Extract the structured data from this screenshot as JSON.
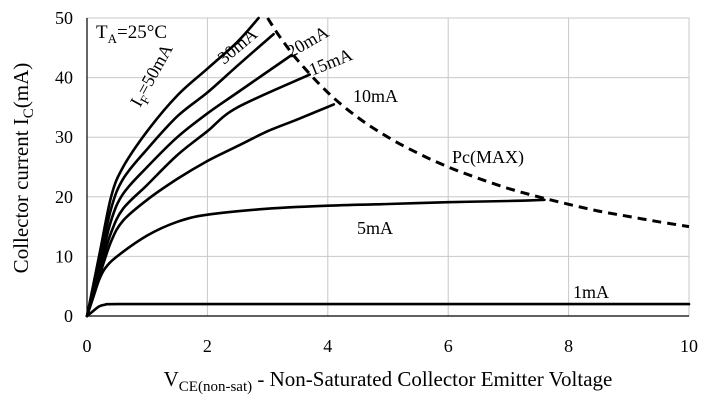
{
  "chart_data": {
    "type": "line",
    "annotation": {
      "prefix": "T",
      "sub": "A",
      "suffix": "=25°C"
    },
    "xlabel": {
      "main": "V",
      "sub": "CE(non-sat)",
      "rest": " - Non-Saturated Collector Emitter Voltage"
    },
    "ylabel": {
      "main": "Collector current I",
      "sub": "C",
      "rest": "(mA)"
    },
    "xlim": [
      0,
      10
    ],
    "ylim": [
      0,
      50
    ],
    "x_ticks": [
      0,
      2,
      4,
      6,
      8,
      10
    ],
    "y_ticks": [
      0,
      10,
      20,
      30,
      40,
      50
    ],
    "grid": true,
    "series": [
      {
        "label": "I",
        "label_sub": "F",
        "label_rest": "=50mA",
        "points": [
          [
            0,
            0
          ],
          [
            0.2,
            10
          ],
          [
            0.4,
            20
          ],
          [
            0.6,
            25
          ],
          [
            1,
            31
          ],
          [
            1.5,
            37
          ],
          [
            2,
            41.5
          ],
          [
            2.5,
            46
          ],
          [
            2.85,
            50
          ]
        ]
      },
      {
        "label": "30mA",
        "points": [
          [
            0,
            0
          ],
          [
            0.2,
            9
          ],
          [
            0.4,
            18
          ],
          [
            0.6,
            23
          ],
          [
            1,
            28
          ],
          [
            1.5,
            33.5
          ],
          [
            2,
            37.5
          ],
          [
            2.5,
            42
          ],
          [
            3.1,
            47.3
          ]
        ]
      },
      {
        "label": "20mA",
        "points": [
          [
            0,
            0
          ],
          [
            0.2,
            8
          ],
          [
            0.4,
            16
          ],
          [
            0.6,
            20.5
          ],
          [
            1,
            25
          ],
          [
            1.5,
            30
          ],
          [
            2,
            34
          ],
          [
            2.5,
            37.5
          ],
          [
            3.4,
            43.8
          ]
        ]
      },
      {
        "label": "15mA",
        "points": [
          [
            0,
            0
          ],
          [
            0.2,
            7.5
          ],
          [
            0.4,
            14
          ],
          [
            0.6,
            18
          ],
          [
            1,
            22
          ],
          [
            1.5,
            27
          ],
          [
            2,
            31
          ],
          [
            2.5,
            35
          ],
          [
            3.7,
            40.5
          ]
        ]
      },
      {
        "label": "10mA",
        "points": [
          [
            0,
            0
          ],
          [
            0.2,
            6.5
          ],
          [
            0.4,
            12.5
          ],
          [
            0.6,
            16
          ],
          [
            1,
            19.5
          ],
          [
            1.5,
            23
          ],
          [
            2,
            26
          ],
          [
            2.5,
            28.5
          ],
          [
            3,
            31
          ],
          [
            3.5,
            33
          ],
          [
            4.1,
            35.5
          ]
        ]
      },
      {
        "label": "5mA",
        "points": [
          [
            0,
            0
          ],
          [
            0.1,
            3
          ],
          [
            0.2,
            6
          ],
          [
            0.3,
            8
          ],
          [
            0.5,
            10
          ],
          [
            1,
            13.5
          ],
          [
            1.5,
            15.8
          ],
          [
            2,
            17
          ],
          [
            3,
            18
          ],
          [
            4,
            18.5
          ],
          [
            5,
            18.8
          ],
          [
            6,
            19.1
          ],
          [
            7,
            19.3
          ],
          [
            7.6,
            19.5
          ]
        ]
      },
      {
        "label": "1mA",
        "points": [
          [
            0,
            0
          ],
          [
            0.1,
            0.8
          ],
          [
            0.2,
            1.6
          ],
          [
            0.3,
            1.9
          ],
          [
            0.5,
            2
          ],
          [
            2,
            2
          ],
          [
            4,
            2
          ],
          [
            6,
            2
          ],
          [
            8,
            2
          ],
          [
            10,
            2
          ]
        ]
      }
    ],
    "pc_max": {
      "label": "Pc(MAX)",
      "points": [
        [
          3,
          50
        ],
        [
          3.2,
          46.9
        ],
        [
          3.5,
          42.9
        ],
        [
          4,
          37.5
        ],
        [
          4.5,
          33.3
        ],
        [
          5,
          30
        ],
        [
          5.5,
          27.3
        ],
        [
          6,
          25
        ],
        [
          6.5,
          23.1
        ],
        [
          7,
          21.4
        ],
        [
          7.5,
          20
        ],
        [
          8,
          18.75
        ],
        [
          8.5,
          17.6
        ],
        [
          9,
          16.7
        ],
        [
          9.5,
          15.8
        ],
        [
          10,
          15
        ]
      ]
    }
  }
}
